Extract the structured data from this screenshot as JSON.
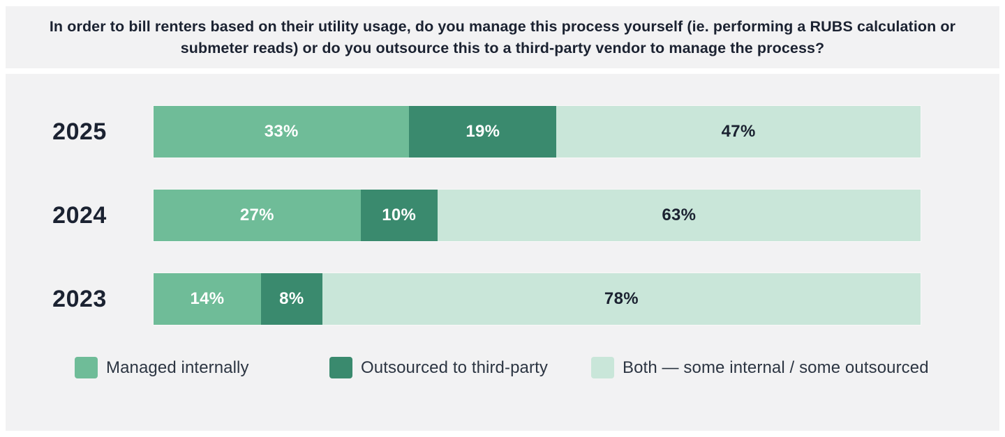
{
  "title": "In order to bill renters based on their utility usage, do you manage this process yourself (ie. performing a RUBS calculation or submeter reads) or do you outsource this to a third-party vendor to manage the process?",
  "colors": {
    "panel-bg": "#F2F2F3",
    "text-dark": "#1B2231",
    "c-internal": "#6FBC98",
    "c-outsourced": "#3A8A6E",
    "c-both": "#C9E6D9"
  },
  "chart_data": {
    "type": "bar",
    "orientation": "horizontal",
    "stacked": true,
    "title": "In order to bill renters based on their utility usage, do you manage this process yourself (ie. performing a RUBS calculation or submeter reads) or do you outsource this to a third-party vendor to manage the process?",
    "categories": [
      "2025",
      "2024",
      "2023"
    ],
    "series": [
      {
        "name": "Managed internally",
        "color": "#6FBC98",
        "values": [
          33,
          27,
          14
        ]
      },
      {
        "name": "Outsourced to third-party",
        "color": "#3A8A6E",
        "values": [
          19,
          10,
          8
        ]
      },
      {
        "name": "Both — some internal / some outsourced",
        "color": "#C9E6D9",
        "values": [
          47,
          63,
          78
        ]
      }
    ],
    "value_format": "percent",
    "xlim": [
      0,
      100
    ],
    "grid": false,
    "legend_position": "bottom",
    "rows": [
      {
        "year": "2025",
        "segments": [
          {
            "label": "33%",
            "value": 33
          },
          {
            "label": "19%",
            "value": 19
          },
          {
            "label": "47%",
            "value": 47
          }
        ]
      },
      {
        "year": "2024",
        "segments": [
          {
            "label": "27%",
            "value": 27
          },
          {
            "label": "10%",
            "value": 10
          },
          {
            "label": "63%",
            "value": 63
          }
        ]
      },
      {
        "year": "2023",
        "segments": [
          {
            "label": "14%",
            "value": 14
          },
          {
            "label": "8%",
            "value": 8
          },
          {
            "label": "78%",
            "value": 78
          }
        ]
      }
    ]
  },
  "legend": {
    "items": [
      {
        "label": "Managed internally",
        "color": "#6FBC98"
      },
      {
        "label": "Outsourced to third-party",
        "color": "#3A8A6E"
      },
      {
        "label": "Both — some internal / some outsourced",
        "color": "#C9E6D9"
      }
    ]
  }
}
